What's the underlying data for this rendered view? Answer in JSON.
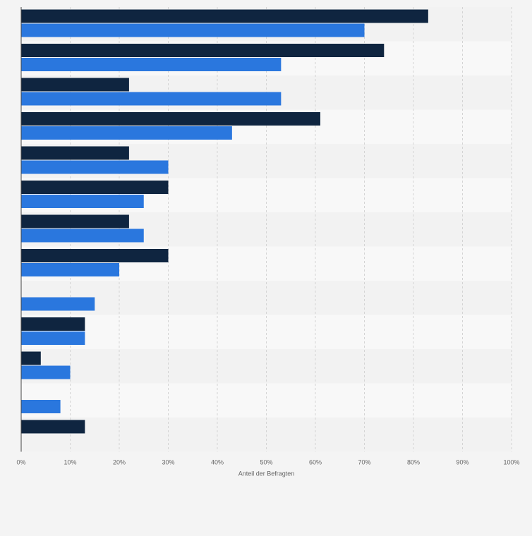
{
  "chart_data": {
    "type": "bar",
    "orientation": "horizontal",
    "xlabel": "Anteil der Befragten",
    "ylabel": "",
    "xlim": [
      0,
      100
    ],
    "x_ticks": [
      "0%",
      "10%",
      "20%",
      "30%",
      "40%",
      "50%",
      "60%",
      "70%",
      "80%",
      "90%",
      "100%"
    ],
    "grid": "vertical dashed lines",
    "legend": "",
    "categories": [
      "",
      "",
      "",
      "",
      "",
      "",
      "",
      "",
      "",
      "",
      "",
      "",
      ""
    ],
    "series": [
      {
        "color": "#0f2540",
        "values": [
          83,
          74,
          22,
          61,
          22,
          30,
          22,
          30,
          null,
          13,
          4,
          null,
          13
        ]
      },
      {
        "color": "#2a77de",
        "values": [
          70,
          53,
          53,
          43,
          30,
          25,
          25,
          20,
          15,
          13,
          10,
          8,
          null
        ]
      }
    ]
  },
  "colors": {
    "background": "#f4f4f4",
    "band_light": "#f8f8f8",
    "band_dark": "#f2f2f2",
    "grid": "#d4d4d4",
    "axis": "#444444"
  }
}
